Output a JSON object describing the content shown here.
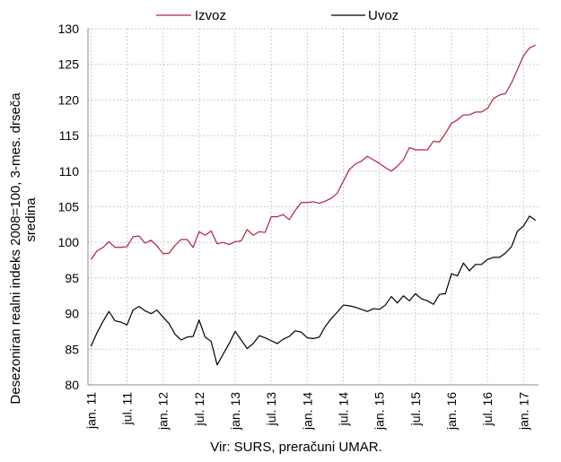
{
  "chart_data": {
    "type": "line",
    "title": "",
    "ylabel_lines": [
      "Desezoniran realni indeks 2008=100, 3-mes. drseča",
      "sredina"
    ],
    "xlabel": "",
    "source": "Vir: SURS, preračuni UMAR.",
    "ylim": [
      80,
      130
    ],
    "yticks": [
      80,
      85,
      90,
      95,
      100,
      105,
      110,
      115,
      120,
      125,
      130
    ],
    "grid": "dotted",
    "legend_position": "top",
    "x_tick_labels": [
      "jan. 11",
      "jul. 11",
      "jan. 12",
      "jul. 12",
      "jan. 13",
      "jul. 13",
      "jan. 14",
      "jul. 14",
      "jan. 15",
      "jul. 15",
      "jan. 16",
      "jul. 16",
      "jan. 17"
    ],
    "x_start": "jan. 11",
    "x_frequency": "monthly",
    "series": [
      {
        "name": "Izvoz",
        "color": "#b5203b",
        "values": [
          97.6,
          98.8,
          99.3,
          100.1,
          99.3,
          99.3,
          99.4,
          100.8,
          100.9,
          99.9,
          100.3,
          99.5,
          98.4,
          98.5,
          99.6,
          100.4,
          100.4,
          99.3,
          101.5,
          101.0,
          101.6,
          99.8,
          100.0,
          99.7,
          100.1,
          100.2,
          101.8,
          101.0,
          101.5,
          101.4,
          103.6,
          103.6,
          103.9,
          103.2,
          104.5,
          105.6,
          105.6,
          105.7,
          105.5,
          105.8,
          106.2,
          106.9,
          108.6,
          110.2,
          111.0,
          111.4,
          112.1,
          111.6,
          111.1,
          110.5,
          110.0,
          110.7,
          111.6,
          113.3,
          113.0,
          113.0,
          113.0,
          114.2,
          114.1,
          115.3,
          116.7,
          117.2,
          117.9,
          117.9,
          118.3,
          118.3,
          118.8,
          120.2,
          120.7,
          120.9,
          122.4,
          124.3,
          126.2,
          127.3,
          127.7
        ]
      },
      {
        "name": "Uvoz",
        "color": "#000000",
        "values": [
          85.4,
          87.3,
          88.9,
          90.3,
          89.0,
          88.8,
          88.4,
          90.5,
          91.0,
          90.4,
          90.0,
          90.5,
          89.5,
          88.6,
          87.1,
          86.3,
          86.7,
          86.8,
          89.1,
          86.7,
          86.1,
          82.8,
          84.3,
          85.8,
          87.5,
          86.3,
          85.1,
          85.8,
          86.9,
          86.6,
          86.2,
          85.8,
          86.4,
          86.8,
          87.6,
          87.4,
          86.6,
          86.5,
          86.7,
          88.2,
          89.3,
          90.2,
          91.2,
          91.1,
          90.9,
          90.6,
          90.3,
          90.7,
          90.6,
          91.2,
          92.4,
          91.5,
          92.5,
          91.8,
          92.8,
          92.1,
          91.8,
          91.3,
          92.7,
          92.8,
          95.6,
          95.3,
          97.1,
          96.0,
          96.9,
          96.9,
          97.6,
          97.9,
          97.9,
          98.5,
          99.4,
          101.6,
          102.3,
          103.7,
          103.1
        ]
      }
    ]
  }
}
